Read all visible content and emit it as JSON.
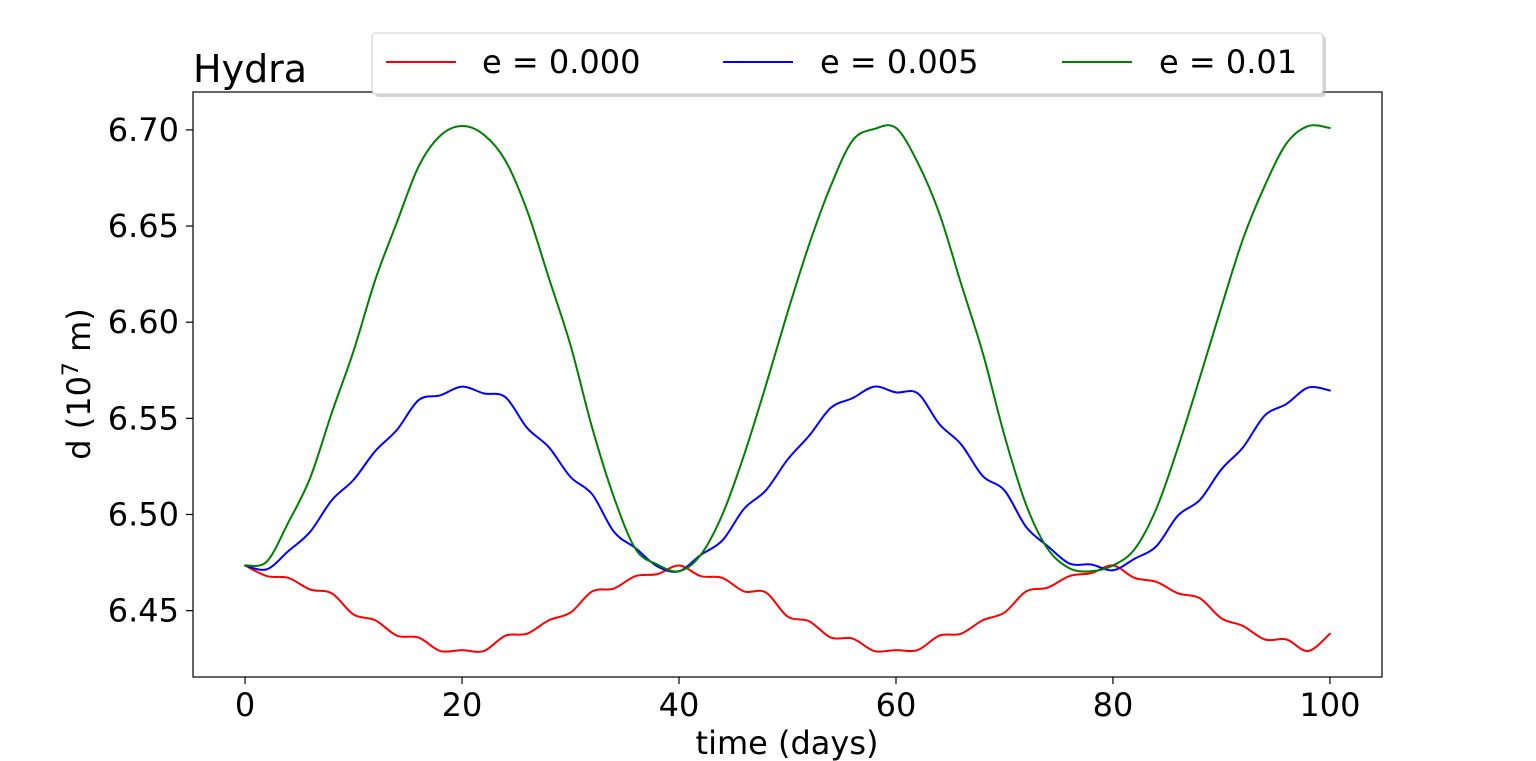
{
  "chart_data": {
    "type": "line",
    "title": "Hydra",
    "xlabel": "time (days)",
    "ylabel_prefix": "d (10",
    "ylabel_exponent": "7",
    "ylabel_suffix": " m)",
    "xlim": [
      -4.8,
      104.8
    ],
    "ylim": [
      6.4155,
      6.7197
    ],
    "xticks": [
      0,
      20,
      40,
      60,
      80,
      100
    ],
    "xtick_labels": [
      "0",
      "20",
      "40",
      "60",
      "80",
      "100"
    ],
    "yticks": [
      6.45,
      6.5,
      6.55,
      6.6,
      6.65,
      6.7
    ],
    "ytick_labels": [
      "6.45",
      "6.50",
      "6.55",
      "6.60",
      "6.65",
      "6.70"
    ],
    "grid": false,
    "legend_position": "top-center",
    "series": [
      {
        "name": "e = 0.000",
        "color": "#ff0000",
        "x": [
          0,
          2,
          4,
          6,
          8,
          10,
          12,
          14,
          16,
          18,
          20,
          22,
          24,
          26,
          28,
          30,
          32,
          34,
          36,
          38,
          40,
          42,
          44,
          46,
          48,
          50,
          52,
          54,
          56,
          58,
          60,
          62,
          64,
          66,
          68,
          70,
          72,
          74,
          76,
          78,
          80,
          82,
          84,
          86,
          88,
          90,
          92,
          94,
          96,
          98,
          100
        ],
        "y": [
          6.4735,
          6.468,
          6.467,
          6.461,
          6.459,
          6.448,
          6.445,
          6.437,
          6.436,
          6.429,
          6.4295,
          6.429,
          6.437,
          6.438,
          6.445,
          6.449,
          6.46,
          6.4615,
          6.468,
          6.469,
          6.4735,
          6.468,
          6.467,
          6.46,
          6.4595,
          6.447,
          6.4445,
          6.436,
          6.4355,
          6.429,
          6.4295,
          6.4295,
          6.437,
          6.438,
          6.445,
          6.449,
          6.46,
          6.462,
          6.468,
          6.4695,
          6.4735,
          6.467,
          6.465,
          6.459,
          6.4565,
          6.446,
          6.442,
          6.435,
          6.435,
          6.429,
          6.438
        ]
      },
      {
        "name": "e = 0.005",
        "color": "#0000ff",
        "x": [
          0,
          2,
          4,
          6,
          8,
          10,
          12,
          14,
          16,
          18,
          20,
          22,
          24,
          26,
          28,
          30,
          32,
          34,
          36,
          38,
          40,
          42,
          44,
          46,
          48,
          50,
          52,
          54,
          56,
          58,
          60,
          62,
          64,
          66,
          68,
          70,
          72,
          74,
          76,
          78,
          80,
          82,
          84,
          86,
          88,
          90,
          92,
          94,
          96,
          98,
          100
        ],
        "y": [
          6.4735,
          6.4715,
          6.481,
          6.491,
          6.5075,
          6.518,
          6.533,
          6.544,
          6.5595,
          6.562,
          6.5665,
          6.563,
          6.561,
          6.545,
          6.535,
          6.5195,
          6.5105,
          6.491,
          6.4825,
          6.473,
          6.4705,
          6.479,
          6.4865,
          6.503,
          6.5125,
          6.5285,
          6.541,
          6.5555,
          6.5605,
          6.5665,
          6.5635,
          6.563,
          6.547,
          6.5365,
          6.52,
          6.5125,
          6.4935,
          6.4835,
          6.4745,
          6.474,
          6.471,
          6.477,
          6.4835,
          6.4995,
          6.5075,
          6.5235,
          6.535,
          6.5515,
          6.5575,
          6.566,
          6.5645
        ]
      },
      {
        "name": "e = 0.01",
        "color": "#008000",
        "x": [
          0,
          2,
          4,
          6,
          8,
          10,
          12,
          14,
          16,
          18,
          20,
          22,
          24,
          26,
          28,
          30,
          32,
          34,
          36,
          38,
          40,
          42,
          44,
          46,
          48,
          50,
          52,
          54,
          56,
          58,
          60,
          62,
          64,
          66,
          68,
          70,
          72,
          74,
          76,
          78,
          80,
          82,
          84,
          86,
          88,
          90,
          92,
          94,
          96,
          98,
          100
        ],
        "y": [
          6.4735,
          6.4755,
          6.496,
          6.519,
          6.553,
          6.585,
          6.622,
          6.652,
          6.681,
          6.697,
          6.702,
          6.6975,
          6.684,
          6.658,
          6.623,
          6.588,
          6.545,
          6.509,
          6.482,
          6.474,
          6.4705,
          6.479,
          6.5,
          6.531,
          6.567,
          6.605,
          6.6405,
          6.671,
          6.6945,
          6.7005,
          6.701,
          6.683,
          6.6565,
          6.62,
          6.584,
          6.541,
          6.505,
          6.482,
          6.472,
          6.4705,
          6.4735,
          6.482,
          6.503,
          6.535,
          6.571,
          6.608,
          6.6435,
          6.671,
          6.693,
          6.702,
          6.701
        ]
      }
    ]
  }
}
